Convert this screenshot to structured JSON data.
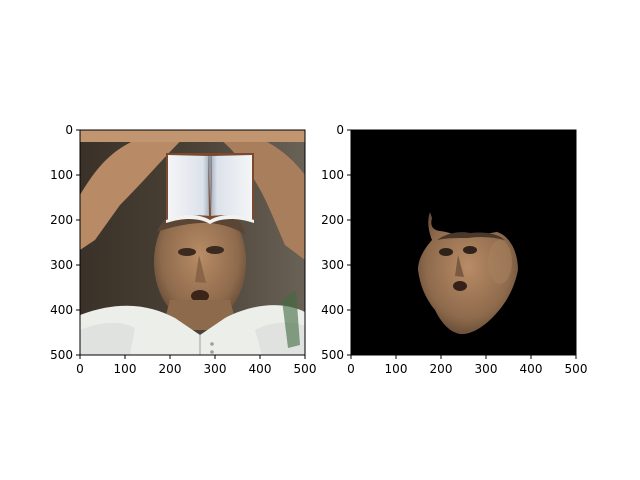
{
  "chart_data": [
    {
      "type": "image",
      "image_content": "photo of a man's face looking upward with raised arms, an open book pasted over his forehead",
      "xticks": [
        0,
        100,
        200,
        300,
        400,
        500
      ],
      "yticks": [
        0,
        100,
        200,
        300,
        400,
        500
      ],
      "xlim": [
        0,
        500
      ],
      "ylim": [
        500,
        0
      ]
    },
    {
      "type": "image",
      "image_content": "segmented face mask on black background",
      "xticks": [
        0,
        100,
        200,
        300,
        400,
        500
      ],
      "yticks": [
        0,
        100,
        200,
        300,
        400,
        500
      ],
      "xlim": [
        0,
        500
      ],
      "ylim": [
        500,
        0
      ]
    }
  ]
}
